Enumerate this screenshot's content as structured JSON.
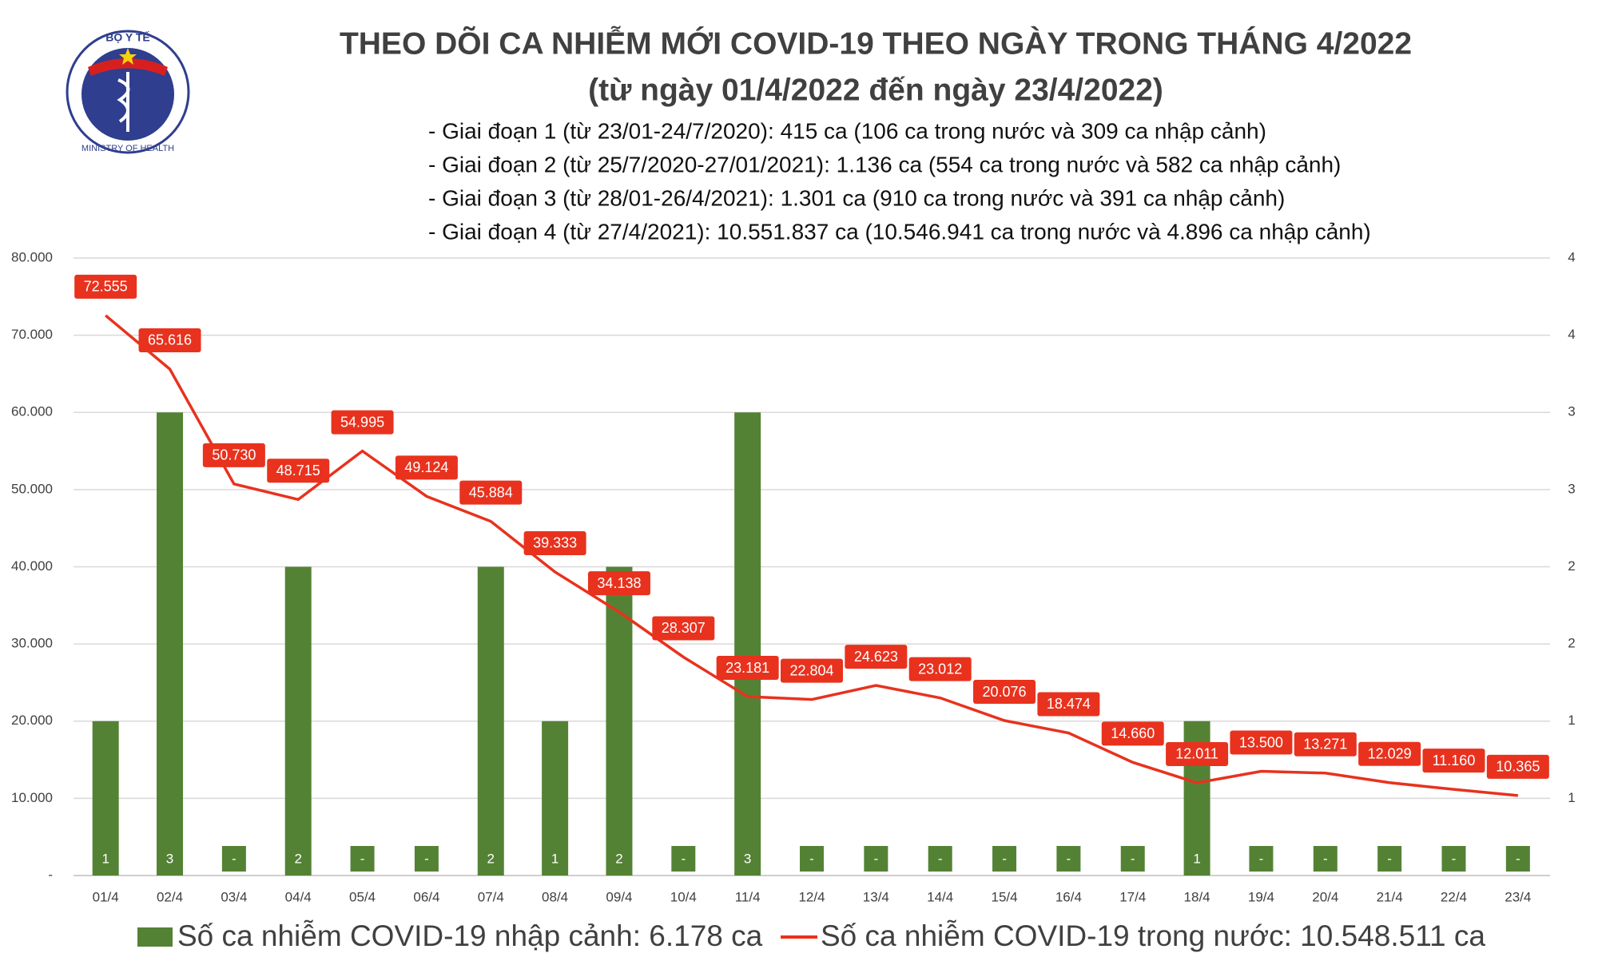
{
  "logo": {
    "top_text": "BỘ Y TẾ",
    "bottom_text": "MINISTRY OF HEALTH"
  },
  "chart_data": {
    "type": "bar_line",
    "title": "THEO DÕI CA NHIỄM MỚI COVID-19 THEO NGÀY TRONG THÁNG 4/2022",
    "subtitle": "(từ ngày 01/4/2022 đến ngày 23/4/2022)",
    "notes": [
      "- Giai đoạn 1 (từ 23/01-24/7/2020): 415 ca (106 ca trong nước và 309 ca nhập cảnh)",
      "- Giai đoạn 2 (từ 25/7/2020-27/01/2021): 1.136 ca (554 ca trong nước và 582 ca nhập cảnh)",
      "- Giai đoạn 3 (từ 28/01-26/4/2021): 1.301 ca (910 ca trong nước và 391 ca nhập cảnh)",
      "- Giai đoạn 4 (từ 27/4/2021): 10.551.837 ca (10.546.941 ca trong nước và 4.896 ca nhập cảnh)"
    ],
    "categories": [
      "01/4",
      "02/4",
      "03/4",
      "04/4",
      "05/4",
      "06/4",
      "07/4",
      "08/4",
      "09/4",
      "10/4",
      "11/4",
      "12/4",
      "13/4",
      "14/4",
      "15/4",
      "16/4",
      "17/4",
      "18/4",
      "19/4",
      "20/4",
      "21/4",
      "22/4",
      "23/4"
    ],
    "series": [
      {
        "name": "Số ca nhiễm COVID-19 nhập cảnh: 6.178 ca",
        "type": "bar",
        "axis": "y2",
        "color": "#548235",
        "values": [
          1,
          3,
          0,
          2,
          0,
          0,
          2,
          1,
          2,
          0,
          3,
          0,
          0,
          0,
          0,
          0,
          0,
          1,
          0,
          0,
          0,
          0,
          0
        ],
        "value_labels": [
          "1",
          "3",
          "-",
          "2",
          "-",
          "-",
          "2",
          "1",
          "2",
          "-",
          "3",
          "-",
          "-",
          "-",
          "-",
          "-",
          "-",
          "1",
          "-",
          "-",
          "-",
          "-",
          "-"
        ]
      },
      {
        "name": "Số ca nhiễm COVID-19 trong nước: 10.548.511 ca",
        "type": "line",
        "color": "#e8321e",
        "values": [
          72555,
          65616,
          50730,
          48715,
          54995,
          49124,
          45884,
          39333,
          34138,
          28307,
          23181,
          22804,
          24623,
          23012,
          20076,
          18474,
          14660,
          12011,
          13500,
          13271,
          12029,
          11160,
          10365
        ],
        "value_labels": [
          "72.555",
          "65.616",
          "50.730",
          "48.715",
          "54.995",
          "49.124",
          "45.884",
          "39.333",
          "34.138",
          "28.307",
          "23.181",
          "22.804",
          "24.623",
          "23.012",
          "20.076",
          "18.474",
          "14.660",
          "12.011",
          "13.500",
          "13.271",
          "12.029",
          "11.160",
          "10.365"
        ]
      }
    ],
    "ylim": [
      0,
      80000
    ],
    "yticks": [
      {
        "value": 0,
        "label": "-"
      },
      {
        "value": 10000,
        "label": "10.000"
      },
      {
        "value": 20000,
        "label": "20.000"
      },
      {
        "value": 30000,
        "label": "30.000"
      },
      {
        "value": 40000,
        "label": "40.000"
      },
      {
        "value": 50000,
        "label": "50.000"
      },
      {
        "value": 60000,
        "label": "60.000"
      },
      {
        "value": 70000,
        "label": "70.000"
      },
      {
        "value": 80000,
        "label": "80.000"
      }
    ],
    "y2lim": [
      0,
      4
    ],
    "y2ticks": [
      {
        "value": 0.5,
        "label": "1"
      },
      1,
      {
        "value": 1.5,
        "label": "2"
      },
      2,
      {
        "value": 2.5,
        "label": "3"
      },
      3,
      {
        "value": 3.5,
        "label": "4"
      },
      4
    ],
    "grid": true
  }
}
